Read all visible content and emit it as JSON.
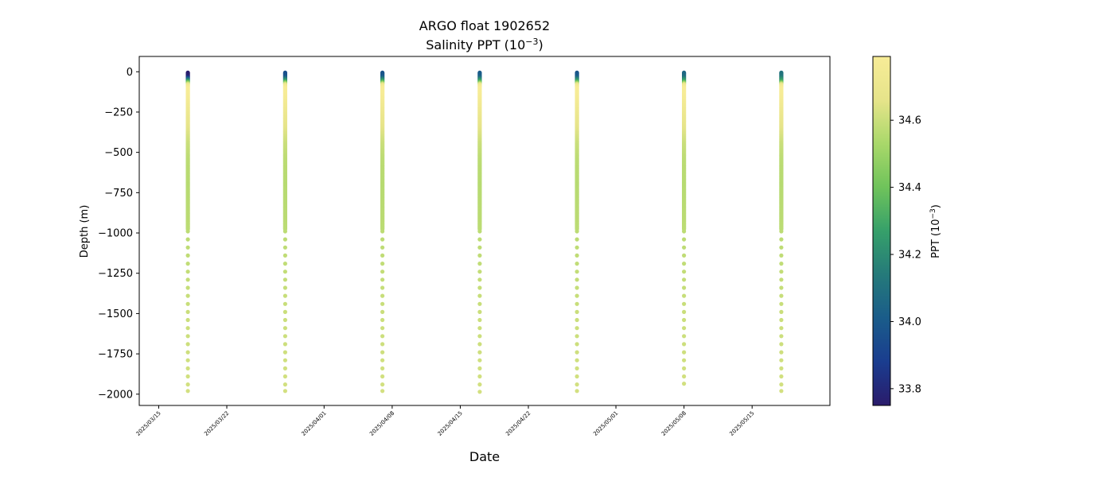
{
  "chart_data": {
    "type": "scatter",
    "title": "ARGO float 1902652",
    "subtitle_main": "Salinity PPT (10",
    "subtitle_exp": "−3",
    "subtitle_end": ")",
    "xlabel": "Date",
    "ylabel": "Depth (m)",
    "colorbar_label_main": "PPT (10",
    "colorbar_label_exp": "−3",
    "colorbar_label_end": ")",
    "colormap": "summer-like yellow-green-blue (deep navy at low salinity, pale yellow at high)",
    "colormap_stops": [
      "#2a1b6b",
      "#1a3d8f",
      "#1a5c8a",
      "#257a7a",
      "#36a06a",
      "#6fc35b",
      "#a9d86a",
      "#e6e48a",
      "#f7ec97"
    ],
    "clim": [
      33.75,
      34.79
    ],
    "xlim": [
      "2025-03-13",
      "2025-05-23"
    ],
    "ylim": [
      -2070,
      95
    ],
    "grid": false,
    "x_ticks": [
      "2025/03/15",
      "2025/03/22",
      "2025/04/01",
      "2025/04/08",
      "2025/04/15",
      "2025/04/22",
      "2025/05/01",
      "2025/05/08",
      "2025/05/15"
    ],
    "x_tick_dates": [
      "2025-03-15",
      "2025-03-22",
      "2025-04-01",
      "2025-04-08",
      "2025-04-15",
      "2025-04-22",
      "2025-05-01",
      "2025-05-08",
      "2025-05-15"
    ],
    "y_ticks": [
      0,
      -250,
      -500,
      -750,
      -1000,
      -1250,
      -1500,
      -1750,
      -2000
    ],
    "y_tick_labels": [
      "0",
      "−250",
      "−500",
      "−750",
      "−1000",
      "−1250",
      "−1500",
      "−1750",
      "−2000"
    ],
    "colorbar_ticks": [
      33.8,
      34.0,
      34.2,
      34.4,
      34.6
    ],
    "colorbar_tick_labels": [
      "33.8",
      "34.0",
      "34.2",
      "34.4",
      "34.6"
    ],
    "profiles": [
      {
        "date": "2025-03-18",
        "max_depth": -1980,
        "surface_salinity": 33.75
      },
      {
        "date": "2025-03-28",
        "max_depth": -1980,
        "surface_salinity": 33.95
      },
      {
        "date": "2025-04-07",
        "max_depth": -1980,
        "surface_salinity": 33.97
      },
      {
        "date": "2025-04-17",
        "max_depth": -1985,
        "surface_salinity": 34.0
      },
      {
        "date": "2025-04-27",
        "max_depth": -1980,
        "surface_salinity": 33.98
      },
      {
        "date": "2025-05-08",
        "max_depth": -1935,
        "surface_salinity": 34.05
      },
      {
        "date": "2025-05-18",
        "max_depth": -1980,
        "surface_salinity": 34.1
      }
    ],
    "salinity_profile_shape": {
      "depths": [
        0,
        -30,
        -60,
        -80,
        -100,
        -150,
        -250,
        -350,
        -450,
        -550,
        -700,
        -1000,
        -1500,
        -2000
      ],
      "values_after_surface": [
        null,
        null,
        34.3,
        34.7,
        34.79,
        34.78,
        34.72,
        34.66,
        34.6,
        34.57,
        34.56,
        34.57,
        34.6,
        34.62
      ]
    }
  }
}
